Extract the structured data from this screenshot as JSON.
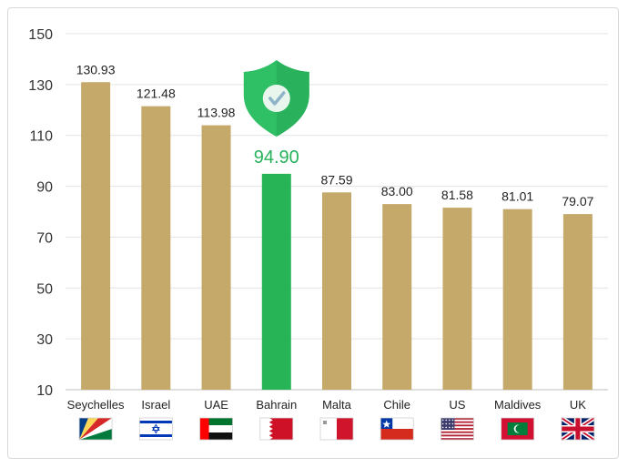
{
  "chart_data": {
    "type": "bar",
    "categories": [
      "Seychelles",
      "Israel",
      "UAE",
      "Bahrain",
      "Malta",
      "Chile",
      "US",
      "Maldives",
      "UK"
    ],
    "values": [
      130.93,
      121.48,
      113.98,
      94.9,
      87.59,
      83.0,
      81.58,
      81.01,
      79.07
    ],
    "value_labels": [
      "130.93",
      "121.48",
      "113.98",
      "94.90",
      "87.59",
      "83.00",
      "81.58",
      "81.01",
      "79.07"
    ],
    "highlight": "Bahrain",
    "ylim": [
      10,
      150
    ],
    "yticks": [
      "10",
      "30",
      "50",
      "70",
      "90",
      "110",
      "130",
      "150"
    ],
    "title": "",
    "xlabel": "",
    "ylabel": "",
    "grid": true,
    "colors": {
      "bar": "#c4a96a",
      "highlight": "#26b457",
      "shield": "#2fbf65",
      "grid": "#e3e3e3"
    },
    "icons": [
      "flag-seychelles-icon",
      "flag-israel-icon",
      "flag-uae-icon",
      "flag-bahrain-icon",
      "flag-malta-icon",
      "flag-chile-icon",
      "flag-us-icon",
      "flag-maldives-icon",
      "flag-uk-icon"
    ],
    "highlight_icon": "shield-check-icon"
  }
}
